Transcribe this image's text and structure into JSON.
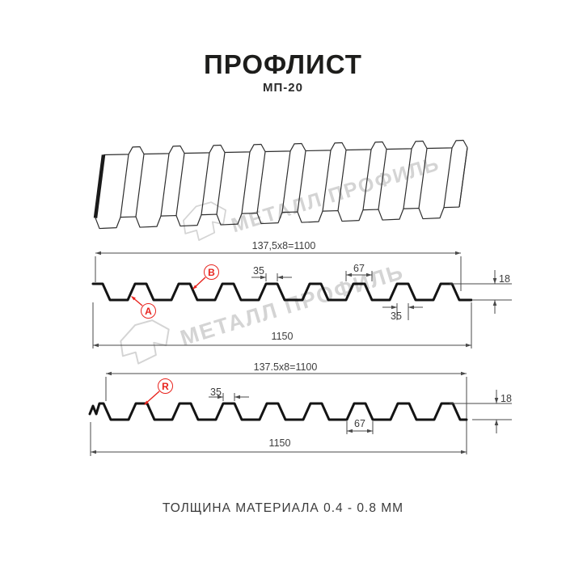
{
  "header": {
    "title": "ПРОФЛИСТ",
    "subtitle": "МП-20"
  },
  "watermark": {
    "brand": "МЕТАЛЛ ПРОФИЛЬ"
  },
  "profile_top": {
    "labels": {
      "a": "A",
      "b": "B"
    },
    "dims": {
      "useful_width": "137,5x8=1100",
      "crest_width_top": "35",
      "rib_base_width": "67",
      "profile_height": "18",
      "crest_width_bottom": "35",
      "overall_width": "1150"
    }
  },
  "profile_bottom": {
    "labels": {
      "r": "R"
    },
    "dims": {
      "useful_width": "137.5x8=1100",
      "crest_width": "35",
      "rib_base_width": "67",
      "profile_height": "18",
      "overall_width": "1150"
    }
  },
  "footer": {
    "text": "ТОЛЩИНА МАТЕРИАЛА 0.4 - 0.8 ММ"
  },
  "colors": {
    "accent_red": "#e8231d",
    "dim_line": "#4a4a4a",
    "profile_line": "#141414",
    "sketch_line": "#2e2e2e",
    "watermark": "#d4d4d4"
  }
}
